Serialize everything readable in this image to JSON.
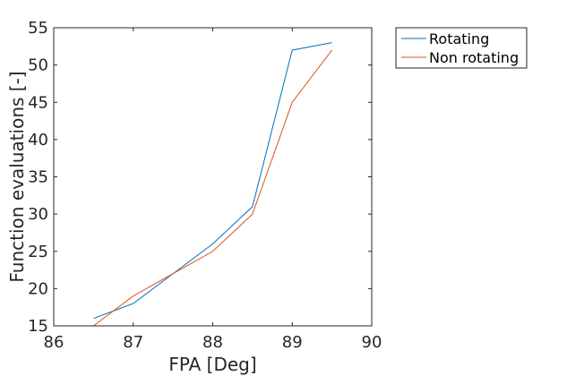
{
  "chart_data": {
    "type": "line",
    "xlabel": "FPA [Deg]",
    "ylabel": "Function evaluations [-]",
    "xlim": [
      86,
      90
    ],
    "ylim": [
      15,
      55
    ],
    "xticks": [
      86,
      87,
      88,
      89,
      90
    ],
    "yticks": [
      15,
      20,
      25,
      30,
      35,
      40,
      45,
      50,
      55
    ],
    "grid": false,
    "legend_position": "outside top-right",
    "series": [
      {
        "name": "Rotating",
        "color": "#0072bd",
        "x": [
          86.5,
          87,
          87.5,
          88,
          88.5,
          89,
          89.5
        ],
        "y": [
          16,
          18,
          22,
          26,
          31,
          52,
          53
        ]
      },
      {
        "name": "Non rotating",
        "color": "#d95319",
        "x": [
          86.5,
          87,
          87.5,
          88,
          88.5,
          89,
          89.5
        ],
        "y": [
          15,
          19,
          22,
          25,
          30,
          45,
          52
        ]
      }
    ]
  }
}
